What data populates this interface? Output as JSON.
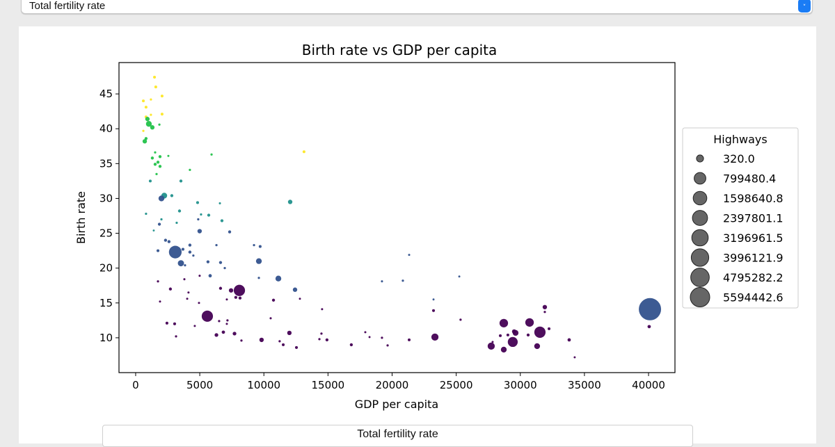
{
  "top_select": {
    "value": "Total fertility rate"
  },
  "bottom_select": {
    "value": "Total fertility rate"
  },
  "chart_data": {
    "type": "scatter",
    "title": "Birth rate vs GDP per capita",
    "xlabel": "GDP per capita",
    "ylabel": "Birth rate",
    "xlim": [
      -1300,
      42060
    ],
    "ylim": [
      5.0,
      49.5
    ],
    "xticks": [
      0,
      5000,
      10000,
      15000,
      20000,
      25000,
      30000,
      35000,
      40000
    ],
    "yticks": [
      10,
      15,
      20,
      25,
      30,
      35,
      40,
      45
    ],
    "grid": false,
    "size_encoding": "Highways",
    "legend": {
      "title": "Highways",
      "placement": "right-outside",
      "marker_color": "#555555",
      "entries": [
        "320.0",
        "799480.4",
        "1598640.8",
        "2397801.1",
        "3196961.5",
        "3996121.9",
        "4795282.2",
        "5594442.6"
      ],
      "values": [
        320.0,
        799480.4,
        1598640.8,
        2397801.1,
        3196961.5,
        3996121.9,
        4795282.2,
        5594442.6
      ]
    },
    "color_palette": [
      "#440154",
      "#33528d",
      "#21918c",
      "#22c24a",
      "#fde725"
    ],
    "point_fields": [
      "gdp_per_capita",
      "birth_rate",
      "highways",
      "color_index"
    ],
    "points": [
      [
        1470,
        47.4,
        20000,
        4
      ],
      [
        1570,
        46.0,
        20000,
        4
      ],
      [
        2060,
        44.7,
        20000,
        4
      ],
      [
        600,
        44.0,
        20000,
        4
      ],
      [
        1190,
        44.2,
        5000,
        4
      ],
      [
        810,
        43.1,
        20000,
        4
      ],
      [
        810,
        41.7,
        20000,
        4
      ],
      [
        1190,
        42.0,
        5000,
        4
      ],
      [
        2060,
        42.1,
        20000,
        4
      ],
      [
        600,
        39.7,
        5000,
        4
      ],
      [
        13130,
        36.7,
        20000,
        4
      ],
      [
        920,
        41.4,
        110000,
        3
      ],
      [
        1030,
        40.7,
        250000,
        3
      ],
      [
        1300,
        40.2,
        110000,
        3
      ],
      [
        1850,
        40.6,
        5000,
        3
      ],
      [
        710,
        38.2,
        110000,
        3
      ],
      [
        810,
        38.6,
        27000,
        3
      ],
      [
        1520,
        36.6,
        5000,
        3
      ],
      [
        1300,
        35.8,
        27000,
        3
      ],
      [
        1900,
        36.0,
        27000,
        3
      ],
      [
        2550,
        36.1,
        3000,
        3
      ],
      [
        5920,
        36.3,
        5000,
        3
      ],
      [
        1520,
        34.9,
        27000,
        3
      ],
      [
        1740,
        35.2,
        27000,
        3
      ],
      [
        1900,
        34.6,
        27000,
        3
      ],
      [
        4230,
        34.1,
        5000,
        3
      ],
      [
        1630,
        33.5,
        5000,
        3
      ],
      [
        810,
        27.8,
        5000,
        2
      ],
      [
        2010,
        27.0,
        5000,
        2
      ],
      [
        3200,
        26.5,
        5000,
        2
      ],
      [
        3420,
        28.2,
        27000,
        2
      ],
      [
        5100,
        27.7,
        5000,
        2
      ],
      [
        5700,
        27.6,
        27000,
        2
      ],
      [
        6730,
        26.8,
        27000,
        2
      ],
      [
        1410,
        25.4,
        2000,
        2
      ],
      [
        1140,
        32.5,
        20000,
        2
      ],
      [
        3530,
        32.5,
        27000,
        2
      ],
      [
        2230,
        30.4,
        250000,
        2
      ],
      [
        2820,
        30.4,
        27000,
        2
      ],
      [
        12050,
        29.5,
        110000,
        2
      ],
      [
        4830,
        29.4,
        20000,
        2
      ],
      [
        6570,
        29.3,
        3000,
        2
      ],
      [
        2010,
        30.0,
        250000,
        1
      ],
      [
        1850,
        26.3,
        27000,
        1
      ],
      [
        4990,
        25.3,
        110000,
        1
      ],
      [
        7330,
        25.2,
        27000,
        1
      ],
      [
        2330,
        24.0,
        27000,
        1
      ],
      [
        2600,
        23.8,
        27000,
        1
      ],
      [
        4230,
        23.3,
        27000,
        1
      ],
      [
        1740,
        22.5,
        20000,
        1
      ],
      [
        3090,
        22.3,
        1770000,
        1
      ],
      [
        3690,
        22.7,
        20000,
        1
      ],
      [
        4230,
        22.3,
        27000,
        1
      ],
      [
        4500,
        21.8,
        5000,
        1
      ],
      [
        3530,
        20.7,
        300000,
        1
      ],
      [
        3850,
        20.4,
        5000,
        1
      ],
      [
        5640,
        20.9,
        27000,
        1
      ],
      [
        6620,
        20.8,
        27000,
        1
      ],
      [
        6950,
        20.0,
        5000,
        1
      ],
      [
        5810,
        18.9,
        40000,
        1
      ],
      [
        6300,
        23.3,
        5000,
        1
      ],
      [
        9230,
        23.3,
        5000,
        1
      ],
      [
        9710,
        23.1,
        20000,
        1
      ],
      [
        9610,
        21.0,
        250000,
        1
      ],
      [
        9610,
        18.6,
        5000,
        1
      ],
      [
        11130,
        18.5,
        250000,
        1
      ],
      [
        12430,
        16.9,
        110000,
        1
      ],
      [
        19210,
        18.1,
        3000,
        1
      ],
      [
        4880,
        27.0,
        5000,
        1
      ],
      [
        21330,
        21.9,
        3000,
        1
      ],
      [
        20840,
        18.2,
        5000,
        1
      ],
      [
        25240,
        18.8,
        2000,
        1
      ],
      [
        23230,
        15.5,
        2000,
        1
      ],
      [
        40110,
        14.1,
        6200000,
        1
      ],
      [
        1740,
        18.1,
        5000,
        0
      ],
      [
        2710,
        17.0,
        27000,
        0
      ],
      [
        3800,
        18.4,
        3000,
        0
      ],
      [
        4990,
        18.9,
        3000,
        0
      ],
      [
        4120,
        16.5,
        3000,
        0
      ],
      [
        4020,
        15.6,
        3000,
        0
      ],
      [
        1900,
        15.2,
        3000,
        0
      ],
      [
        4940,
        15.0,
        3000,
        0
      ],
      [
        6620,
        17.1,
        27000,
        0
      ],
      [
        7110,
        15.5,
        3000,
        0
      ],
      [
        7440,
        16.8,
        110000,
        0
      ],
      [
        8090,
        16.8,
        1350000,
        0
      ],
      [
        7810,
        15.8,
        27000,
        0
      ],
      [
        8140,
        15.7,
        27000,
        0
      ],
      [
        10750,
        15.4,
        27000,
        0
      ],
      [
        12810,
        15.6,
        2000,
        0
      ],
      [
        14540,
        14.1,
        3000,
        0
      ],
      [
        5590,
        13.1,
        1350000,
        0
      ],
      [
        2440,
        12.1,
        20000,
        0
      ],
      [
        3040,
        12.0,
        20000,
        0
      ],
      [
        3150,
        10.2,
        5000,
        0
      ],
      [
        4610,
        11.7,
        3000,
        0
      ],
      [
        6510,
        12.4,
        5000,
        0
      ],
      [
        7160,
        12.5,
        5000,
        0
      ],
      [
        7110,
        12.0,
        3000,
        0
      ],
      [
        6300,
        10.4,
        60000,
        0
      ],
      [
        6840,
        10.8,
        40000,
        0
      ],
      [
        7710,
        10.6,
        60000,
        0
      ],
      [
        8250,
        9.6,
        5000,
        0
      ],
      [
        9820,
        9.7,
        110000,
        0
      ],
      [
        10530,
        12.8,
        3000,
        0
      ],
      [
        11990,
        10.7,
        110000,
        0
      ],
      [
        11230,
        9.5,
        5000,
        0
      ],
      [
        11510,
        9.0,
        20000,
        0
      ],
      [
        12540,
        8.6,
        20000,
        0
      ],
      [
        14490,
        10.6,
        5000,
        0
      ],
      [
        14330,
        9.8,
        5000,
        0
      ],
      [
        14920,
        9.7,
        27000,
        0
      ],
      [
        16820,
        9.0,
        27000,
        0
      ],
      [
        17910,
        10.8,
        3000,
        0
      ],
      [
        18240,
        10.1,
        2000,
        0
      ],
      [
        19210,
        10.0,
        5000,
        0
      ],
      [
        19650,
        8.9,
        5000,
        0
      ],
      [
        21330,
        9.7,
        20000,
        0
      ],
      [
        23340,
        10.1,
        440000,
        0
      ],
      [
        23230,
        13.9,
        20000,
        0
      ],
      [
        25340,
        12.6,
        5000,
        0
      ],
      [
        28710,
        12.1,
        690000,
        0
      ],
      [
        30720,
        12.2,
        690000,
        0
      ],
      [
        31530,
        10.8,
        1350000,
        0
      ],
      [
        28440,
        10.3,
        20000,
        0
      ],
      [
        29030,
        10.4,
        20000,
        0
      ],
      [
        29520,
        10.9,
        110000,
        0
      ],
      [
        29630,
        10.7,
        250000,
        0
      ],
      [
        30610,
        10.4,
        27000,
        0
      ],
      [
        27730,
        8.8,
        440000,
        0
      ],
      [
        28710,
        8.3,
        250000,
        0
      ],
      [
        29410,
        9.4,
        1000000,
        0
      ],
      [
        31310,
        8.8,
        250000,
        0
      ],
      [
        31910,
        14.4,
        110000,
        0
      ],
      [
        31910,
        13.7,
        5000,
        0
      ],
      [
        32240,
        11.3,
        20000,
        0
      ],
      [
        33810,
        9.7,
        40000,
        0
      ],
      [
        34240,
        7.2,
        2000,
        0
      ],
      [
        40050,
        11.6,
        40000,
        0
      ],
      [
        27840,
        9.4,
        3000,
        0
      ]
    ]
  }
}
